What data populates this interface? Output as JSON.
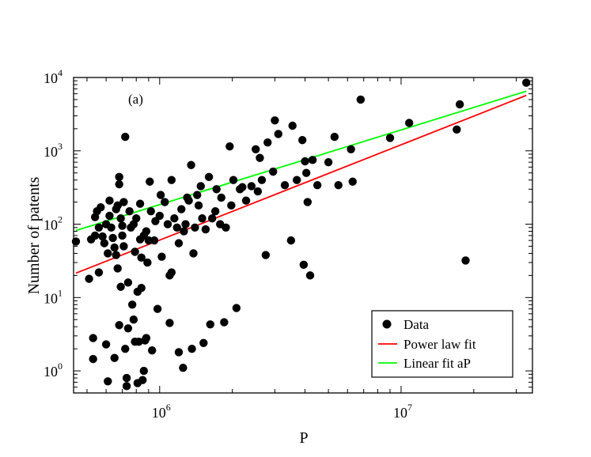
{
  "chart_data": {
    "type": "scatter",
    "title": "",
    "panel_label": "(a)",
    "xlabel": "P",
    "ylabel": "Number of patents",
    "xscale": "log",
    "yscale": "log",
    "xlim": [
      440000,
      35000000
    ],
    "ylim": [
      0.5,
      10000
    ],
    "x_ticks": [
      {
        "value": 1000000,
        "base": "10",
        "exp": "6"
      },
      {
        "value": 10000000,
        "base": "10",
        "exp": "7"
      }
    ],
    "y_ticks": [
      {
        "value": 1,
        "base": "10",
        "exp": "0"
      },
      {
        "value": 10,
        "base": "10",
        "exp": "1"
      },
      {
        "value": 100,
        "base": "10",
        "exp": "2"
      },
      {
        "value": 1000,
        "base": "10",
        "exp": "3"
      },
      {
        "value": 10000,
        "base": "10",
        "exp": "4"
      }
    ],
    "grid": false,
    "legend_position": "bottom-right",
    "series": [
      {
        "name": "Data",
        "kind": "points",
        "color": "#000000",
        "points": [
          [
            450000,
            58
          ],
          [
            510000,
            18
          ],
          [
            520000,
            62
          ],
          [
            530000,
            2.8
          ],
          [
            530000,
            1.45
          ],
          [
            540000,
            70
          ],
          [
            540000,
            125
          ],
          [
            550000,
            150
          ],
          [
            560000,
            22
          ],
          [
            560000,
            90
          ],
          [
            570000,
            170
          ],
          [
            580000,
            68
          ],
          [
            590000,
            55
          ],
          [
            600000,
            100
          ],
          [
            600000,
            2.3
          ],
          [
            610000,
            0.72
          ],
          [
            610000,
            40
          ],
          [
            620000,
            210
          ],
          [
            620000,
            130
          ],
          [
            630000,
            90
          ],
          [
            640000,
            65
          ],
          [
            650000,
            48
          ],
          [
            650000,
            1.5
          ],
          [
            660000,
            160
          ],
          [
            660000,
            38
          ],
          [
            670000,
            25
          ],
          [
            670000,
            180
          ],
          [
            680000,
            350
          ],
          [
            680000,
            440
          ],
          [
            680000,
            4.2
          ],
          [
            690000,
            14
          ],
          [
            690000,
            120
          ],
          [
            700000,
            95
          ],
          [
            700000,
            70
          ],
          [
            710000,
            50
          ],
          [
            710000,
            200
          ],
          [
            720000,
            1550
          ],
          [
            720000,
            2
          ],
          [
            730000,
            0.62
          ],
          [
            730000,
            0.8
          ],
          [
            740000,
            3.8
          ],
          [
            740000,
            16
          ],
          [
            750000,
            150
          ],
          [
            760000,
            90
          ],
          [
            770000,
            8
          ],
          [
            780000,
            5
          ],
          [
            780000,
            100
          ],
          [
            790000,
            42
          ],
          [
            790000,
            2.5
          ],
          [
            800000,
            120
          ],
          [
            810000,
            0.68
          ],
          [
            810000,
            12
          ],
          [
            820000,
            2.5
          ],
          [
            830000,
            62
          ],
          [
            830000,
            190
          ],
          [
            840000,
            35
          ],
          [
            840000,
            13.5
          ],
          [
            850000,
            0.75
          ],
          [
            860000,
            1
          ],
          [
            860000,
            70
          ],
          [
            870000,
            2.6
          ],
          [
            880000,
            80
          ],
          [
            880000,
            2.8
          ],
          [
            890000,
            30
          ],
          [
            900000,
            60
          ],
          [
            910000,
            380
          ],
          [
            920000,
            150
          ],
          [
            930000,
            1.9
          ],
          [
            950000,
            60
          ],
          [
            960000,
            110
          ],
          [
            980000,
            7
          ],
          [
            1000000,
            130
          ],
          [
            1010000,
            250
          ],
          [
            1020000,
            36
          ],
          [
            1050000,
            200
          ],
          [
            1080000,
            100
          ],
          [
            1100000,
            4.5
          ],
          [
            1100000,
            20
          ],
          [
            1120000,
            22
          ],
          [
            1120000,
            400
          ],
          [
            1150000,
            120
          ],
          [
            1180000,
            90
          ],
          [
            1200000,
            55
          ],
          [
            1200000,
            1.8
          ],
          [
            1230000,
            160
          ],
          [
            1250000,
            1.1
          ],
          [
            1260000,
            80
          ],
          [
            1280000,
            100
          ],
          [
            1300000,
            230
          ],
          [
            1320000,
            210
          ],
          [
            1350000,
            640
          ],
          [
            1360000,
            2
          ],
          [
            1380000,
            40
          ],
          [
            1400000,
            90
          ],
          [
            1430000,
            250
          ],
          [
            1450000,
            180
          ],
          [
            1480000,
            330
          ],
          [
            1500000,
            120
          ],
          [
            1520000,
            2.4
          ],
          [
            1550000,
            85
          ],
          [
            1600000,
            440
          ],
          [
            1620000,
            4.3
          ],
          [
            1650000,
            120
          ],
          [
            1700000,
            150
          ],
          [
            1720000,
            300
          ],
          [
            1780000,
            100
          ],
          [
            1800000,
            230
          ],
          [
            1850000,
            4.6
          ],
          [
            1880000,
            90
          ],
          [
            1950000,
            1150
          ],
          [
            1980000,
            180
          ],
          [
            2020000,
            400
          ],
          [
            2080000,
            7.2
          ],
          [
            2150000,
            300
          ],
          [
            2200000,
            320
          ],
          [
            2280000,
            210
          ],
          [
            2400000,
            330
          ],
          [
            2500000,
            1050
          ],
          [
            2550000,
            280
          ],
          [
            2600000,
            800
          ],
          [
            2650000,
            400
          ],
          [
            2750000,
            38
          ],
          [
            2800000,
            1300
          ],
          [
            2950000,
            520
          ],
          [
            3000000,
            2600
          ],
          [
            3100000,
            1700
          ],
          [
            3300000,
            340
          ],
          [
            3500000,
            60
          ],
          [
            3550000,
            2200
          ],
          [
            3700000,
            400
          ],
          [
            3900000,
            1400
          ],
          [
            3950000,
            28
          ],
          [
            4000000,
            720
          ],
          [
            4050000,
            500
          ],
          [
            4100000,
            200
          ],
          [
            4200000,
            20
          ],
          [
            4300000,
            750
          ],
          [
            4500000,
            340
          ],
          [
            5000000,
            700
          ],
          [
            5300000,
            1550
          ],
          [
            5500000,
            340
          ],
          [
            6200000,
            1050
          ],
          [
            6300000,
            380
          ],
          [
            6800000,
            5000
          ],
          [
            9000000,
            1500
          ],
          [
            10800000,
            2400
          ],
          [
            17000000,
            1950
          ],
          [
            17500000,
            4300
          ],
          [
            18500000,
            32
          ],
          [
            33000000,
            8500
          ]
        ]
      },
      {
        "name": "Power law fit",
        "kind": "line",
        "color": "#ff0000",
        "points": [
          [
            450000,
            21.5
          ],
          [
            33000000,
            5700
          ]
        ]
      },
      {
        "name": "Linear fit aP",
        "kind": "line",
        "color": "#00ff00",
        "points": [
          [
            450000,
            82
          ],
          [
            33000000,
            6500
          ]
        ]
      }
    ]
  }
}
